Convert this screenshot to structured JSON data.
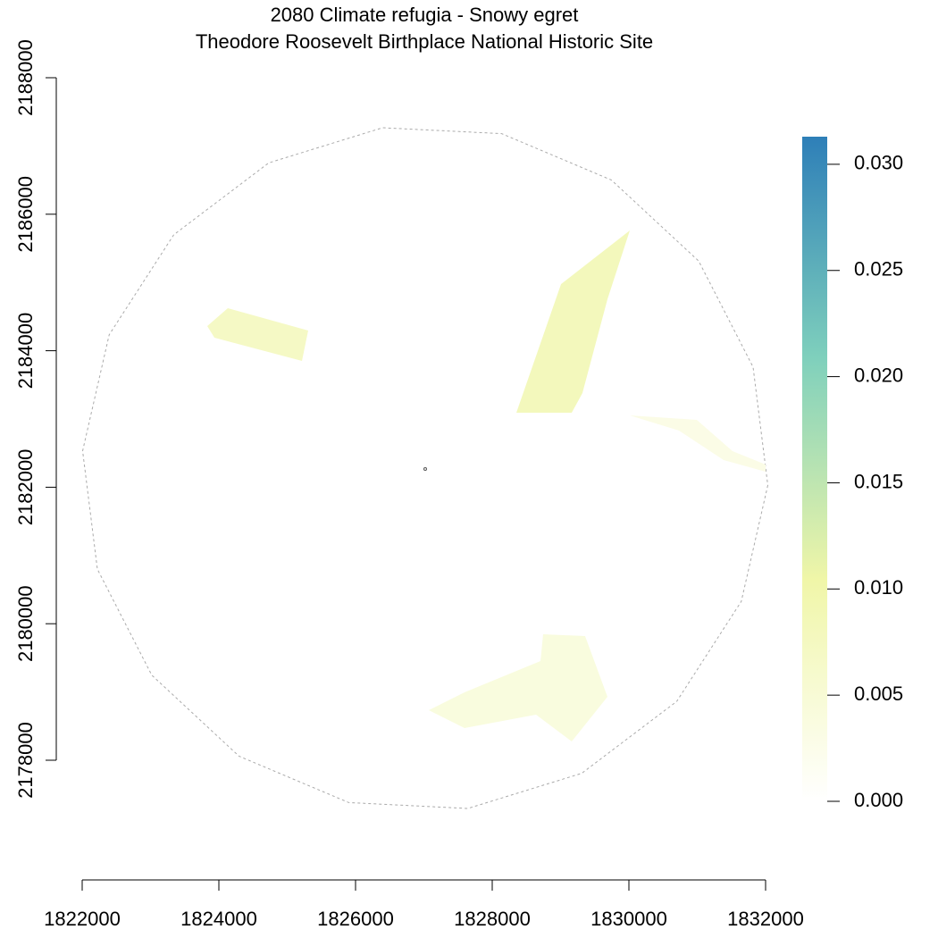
{
  "chart_data": {
    "type": "raster",
    "title": "2080 Climate refugia - Snowy egret",
    "subtitle": "Theodore Roosevelt Birthplace National Historic Site",
    "xlim": [
      1822000,
      1832000
    ],
    "ylim": [
      2178000,
      2188000
    ],
    "xticks": [
      1822000,
      1824000,
      1826000,
      1828000,
      1830000,
      1832000
    ],
    "yticks": [
      2178000,
      2180000,
      2182000,
      2184000,
      2186000,
      2188000
    ],
    "clim": [
      0,
      0.0313
    ],
    "colormap": [
      "#ffffff",
      "#f0f6a8",
      "#7fd0bc",
      "#2e7fb8"
    ],
    "cticks": [
      {
        "value": 0,
        "label": "0.000"
      },
      {
        "value": 0.005,
        "label": "0.005"
      },
      {
        "value": 0.01,
        "label": "0.010"
      },
      {
        "value": 0.015,
        "label": "0.015"
      },
      {
        "value": 0.02,
        "label": "0.020"
      },
      {
        "value": 0.025,
        "label": "0.025"
      },
      {
        "value": 0.03,
        "label": "0.030"
      }
    ],
    "regions": [
      {
        "value": 0.007,
        "x": [
          1823830,
          1824131,
          1825307,
          1825216,
          1823935
        ],
        "y": [
          2184361,
          2184623,
          2184296,
          2183851,
          2184191
        ]
      },
      {
        "value": 0.008,
        "x": [
          1828353,
          1829007,
          1830013,
          1829686,
          1829320,
          1829163
        ],
        "y": [
          2183092,
          2184976,
          2185762,
          2184754,
          2183380,
          2183092
        ]
      },
      {
        "value": 0.004,
        "x": [
          1827072,
          1827595,
          1828706,
          1828745,
          1829359,
          1829686,
          1829163,
          1828641,
          1827595
        ],
        "y": [
          2178733,
          2178995,
          2179453,
          2179846,
          2179819,
          2178929,
          2178275,
          2178668,
          2178471
        ]
      },
      {
        "value": 0.003,
        "x": [
          1830013,
          1830993,
          1831516,
          1832000,
          1832000,
          1831386,
          1830732
        ],
        "y": [
          2183052,
          2182987,
          2182529,
          2182332,
          2182228,
          2182398,
          2182830
        ]
      }
    ]
  }
}
